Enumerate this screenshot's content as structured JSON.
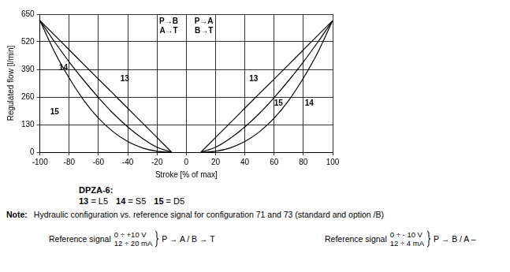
{
  "chart_data": {
    "type": "line",
    "x_label": "Stroke [% of max]",
    "y_label": "Regulated flow [l/min]",
    "xlim": [
      -100,
      100
    ],
    "xticks": [
      -100,
      -80,
      -60,
      -40,
      -20,
      0,
      20,
      40,
      60,
      80,
      100
    ],
    "ylim": [
      0,
      650
    ],
    "yticks": [
      0,
      130,
      260,
      390,
      520,
      650
    ],
    "grid": true,
    "series": [
      {
        "color": "#000000",
        "x": [
          -100,
          -90,
          -80,
          -70,
          -60,
          -50,
          -40,
          -30,
          -20,
          -10
        ],
        "values": [
          620,
          551,
          482,
          413,
          344,
          276,
          207,
          138,
          69,
          0
        ]
      },
      {
        "color": "#000000",
        "x": [
          -100,
          -90,
          -80,
          -70,
          -60,
          -50,
          -40,
          -30,
          -20,
          -10
        ],
        "values": [
          620,
          520,
          425,
          338,
          257,
          183,
          119,
          65,
          23,
          0
        ]
      },
      {
        "color": "#000000",
        "x": [
          -100,
          -90,
          -80,
          -70,
          -60,
          -50,
          -40,
          -30,
          -20,
          -10
        ],
        "values": [
          620,
          472,
          349,
          244,
          160,
          96,
          50,
          20,
          4,
          0
        ]
      },
      {
        "color": "#000000",
        "x": [
          10,
          20,
          30,
          40,
          50,
          60,
          70,
          80,
          90,
          100
        ],
        "values": [
          0,
          69,
          138,
          207,
          276,
          344,
          413,
          482,
          551,
          620
        ]
      },
      {
        "color": "#000000",
        "x": [
          10,
          20,
          30,
          40,
          50,
          60,
          70,
          80,
          90,
          100
        ],
        "values": [
          0,
          23,
          65,
          119,
          183,
          257,
          338,
          425,
          520,
          620
        ]
      },
      {
        "color": "#000000",
        "x": [
          10,
          20,
          30,
          40,
          50,
          60,
          70,
          80,
          90,
          100
        ],
        "values": [
          0,
          4,
          20,
          50,
          96,
          160,
          244,
          349,
          472,
          620
        ]
      }
    ],
    "annotations": [
      {
        "text": "14",
        "x": -84,
        "y": 395
      },
      {
        "text": "13",
        "x": -42,
        "y": 345
      },
      {
        "text": "15",
        "x": -90,
        "y": 190
      },
      {
        "text": "13",
        "x": 46,
        "y": 345
      },
      {
        "text": "15",
        "x": 63,
        "y": 230
      },
      {
        "text": "14",
        "x": 84,
        "y": 230
      },
      {
        "text": "P→B",
        "x": -12,
        "y": 615
      },
      {
        "text": "A→T",
        "x": -12,
        "y": 570
      },
      {
        "text": "P→A",
        "x": 12,
        "y": 615
      },
      {
        "text": "B→T",
        "x": 12,
        "y": 570
      }
    ]
  },
  "caption": {
    "title": "DPZA-6:",
    "items": [
      {
        "key": "13",
        "text": "= L5"
      },
      {
        "key": "14",
        "text": "= S5"
      },
      {
        "key": "15",
        "text": "= D5"
      }
    ]
  },
  "note": {
    "label": "Note:",
    "text": "Hydraulic configuration vs. reference signal for configuration 71 and 73 (standard and option /B)",
    "signals": [
      {
        "prefix": "Reference signal",
        "lines": [
          "0 ÷ +10 V",
          "12 ÷ 20 mA"
        ],
        "result": "P → A / B → T"
      },
      {
        "prefix": "Reference signal",
        "lines": [
          "0 ÷ - 10 V",
          "12 ÷ 4 mA"
        ],
        "result": "P → B / A –"
      }
    ]
  }
}
